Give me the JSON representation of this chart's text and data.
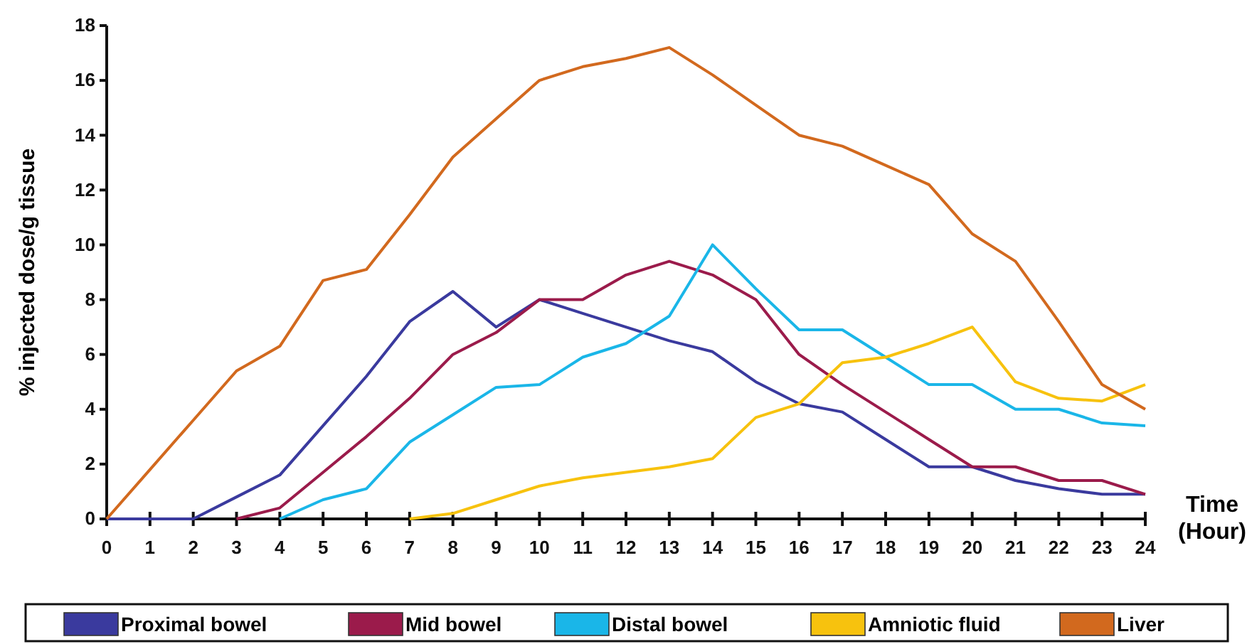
{
  "chart_data": {
    "type": "line",
    "xlabel": "Time (Hour)",
    "ylabel": "% injected dose/g tissue",
    "x": [
      0,
      1,
      2,
      3,
      4,
      5,
      6,
      7,
      8,
      9,
      10,
      11,
      12,
      13,
      14,
      15,
      16,
      17,
      18,
      19,
      20,
      21,
      22,
      23,
      24
    ],
    "xlim": [
      0,
      24
    ],
    "xticks": [
      0,
      1,
      2,
      3,
      4,
      5,
      6,
      7,
      8,
      9,
      10,
      11,
      12,
      13,
      14,
      15,
      16,
      17,
      18,
      19,
      20,
      21,
      22,
      23,
      24
    ],
    "ylim": [
      0,
      18
    ],
    "yticks": [
      0,
      2,
      4,
      6,
      8,
      10,
      12,
      14,
      16,
      18
    ],
    "grid": false,
    "legend": "bottom",
    "marker": "none",
    "line_style": "solid",
    "series": [
      {
        "name": "Proximal bowel",
        "color": "#3a3a9e",
        "values": [
          0,
          0,
          0,
          0.8,
          1.6,
          3.4,
          5.2,
          7.2,
          8.3,
          7.0,
          8.0,
          7.5,
          7.0,
          6.5,
          6.1,
          5.0,
          4.2,
          3.9,
          2.9,
          1.9,
          1.9,
          1.4,
          1.1,
          0.9,
          0.9
        ]
      },
      {
        "name": "Mid bowel",
        "color": "#9b1b4b",
        "values": [
          null,
          null,
          null,
          0,
          0.4,
          1.7,
          3.0,
          4.4,
          6.0,
          6.8,
          8.0,
          8.0,
          8.9,
          9.4,
          8.9,
          8.0,
          6.0,
          4.9,
          3.9,
          2.9,
          1.9,
          1.9,
          1.4,
          1.4,
          0.9
        ]
      },
      {
        "name": "Distal bowel",
        "color": "#1ab6e8",
        "values": [
          null,
          null,
          null,
          null,
          0,
          0.7,
          1.1,
          2.8,
          3.8,
          4.8,
          4.9,
          5.9,
          6.4,
          7.4,
          10.0,
          8.4,
          6.9,
          6.9,
          5.9,
          4.9,
          4.9,
          4.0,
          4.0,
          3.5,
          3.4
        ]
      },
      {
        "name": "Amniotic fluid",
        "color": "#f7c20e",
        "values": [
          null,
          null,
          null,
          null,
          null,
          null,
          null,
          0,
          0.2,
          0.7,
          1.2,
          1.5,
          1.7,
          1.9,
          2.2,
          3.7,
          4.2,
          5.7,
          5.9,
          6.4,
          7.0,
          5.0,
          4.4,
          4.3,
          4.9
        ]
      },
      {
        "name": "Liver",
        "color": "#d2691e",
        "values": [
          0,
          1.8,
          3.6,
          5.4,
          6.3,
          8.7,
          9.1,
          11.1,
          13.2,
          14.6,
          16.0,
          16.5,
          16.8,
          17.2,
          16.2,
          15.1,
          14.0,
          13.6,
          12.9,
          12.2,
          10.4,
          9.4,
          7.2,
          4.9,
          4.0
        ]
      }
    ]
  }
}
